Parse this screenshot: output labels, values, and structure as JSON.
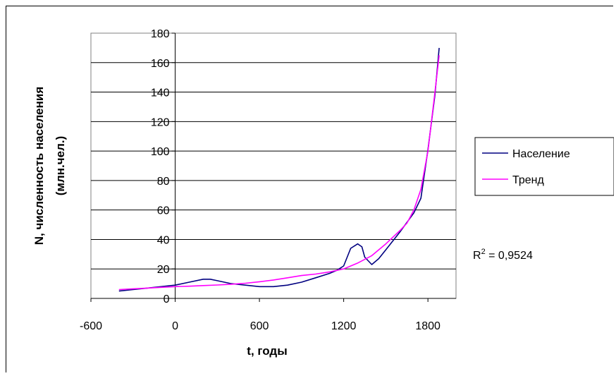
{
  "chart_data": {
    "type": "line",
    "xlabel": "t, годы",
    "ylabel_line1": "N, численность населения",
    "ylabel_line2": "(млн.чел.)",
    "xlim": [
      -600,
      2000
    ],
    "ylim": [
      0,
      180
    ],
    "x_ticks": [
      -600,
      0,
      600,
      1200,
      1800
    ],
    "y_ticks": [
      0,
      20,
      40,
      60,
      80,
      100,
      120,
      140,
      160,
      180
    ],
    "grid": "horizontal",
    "legend_position": "right",
    "annotation": {
      "base": "R",
      "sup": "2",
      "rest": " = 0,9524"
    },
    "series": [
      {
        "name": "Население",
        "color": "#000080",
        "x": [
          -400,
          -300,
          -200,
          -100,
          0,
          100,
          200,
          250,
          300,
          400,
          500,
          600,
          700,
          800,
          900,
          1000,
          1100,
          1150,
          1200,
          1250,
          1300,
          1330,
          1350,
          1400,
          1450,
          1500,
          1600,
          1700,
          1750,
          1800,
          1850,
          1880
        ],
        "y": [
          5,
          6,
          7,
          8,
          9,
          11,
          13,
          13,
          12,
          10,
          9,
          8,
          8,
          9,
          11,
          14,
          17,
          19,
          22,
          34,
          37,
          35,
          28,
          23,
          27,
          33,
          45,
          58,
          68,
          101,
          138,
          170
        ]
      },
      {
        "name": "Тренд",
        "color": "#ff00ff",
        "x": [
          -400,
          -300,
          -200,
          -100,
          0,
          100,
          200,
          300,
          400,
          500,
          600,
          700,
          800,
          900,
          1000,
          1100,
          1200,
          1300,
          1400,
          1500,
          1600,
          1650,
          1700,
          1750,
          1800,
          1850,
          1880
        ],
        "y": [
          6,
          6.5,
          7,
          7.5,
          8,
          8.3,
          8.7,
          9.1,
          9.6,
          10.3,
          11.3,
          12.5,
          14,
          15.5,
          16.5,
          18,
          20,
          24,
          29,
          37,
          46,
          51,
          60,
          74,
          100,
          140,
          165
        ]
      }
    ]
  }
}
